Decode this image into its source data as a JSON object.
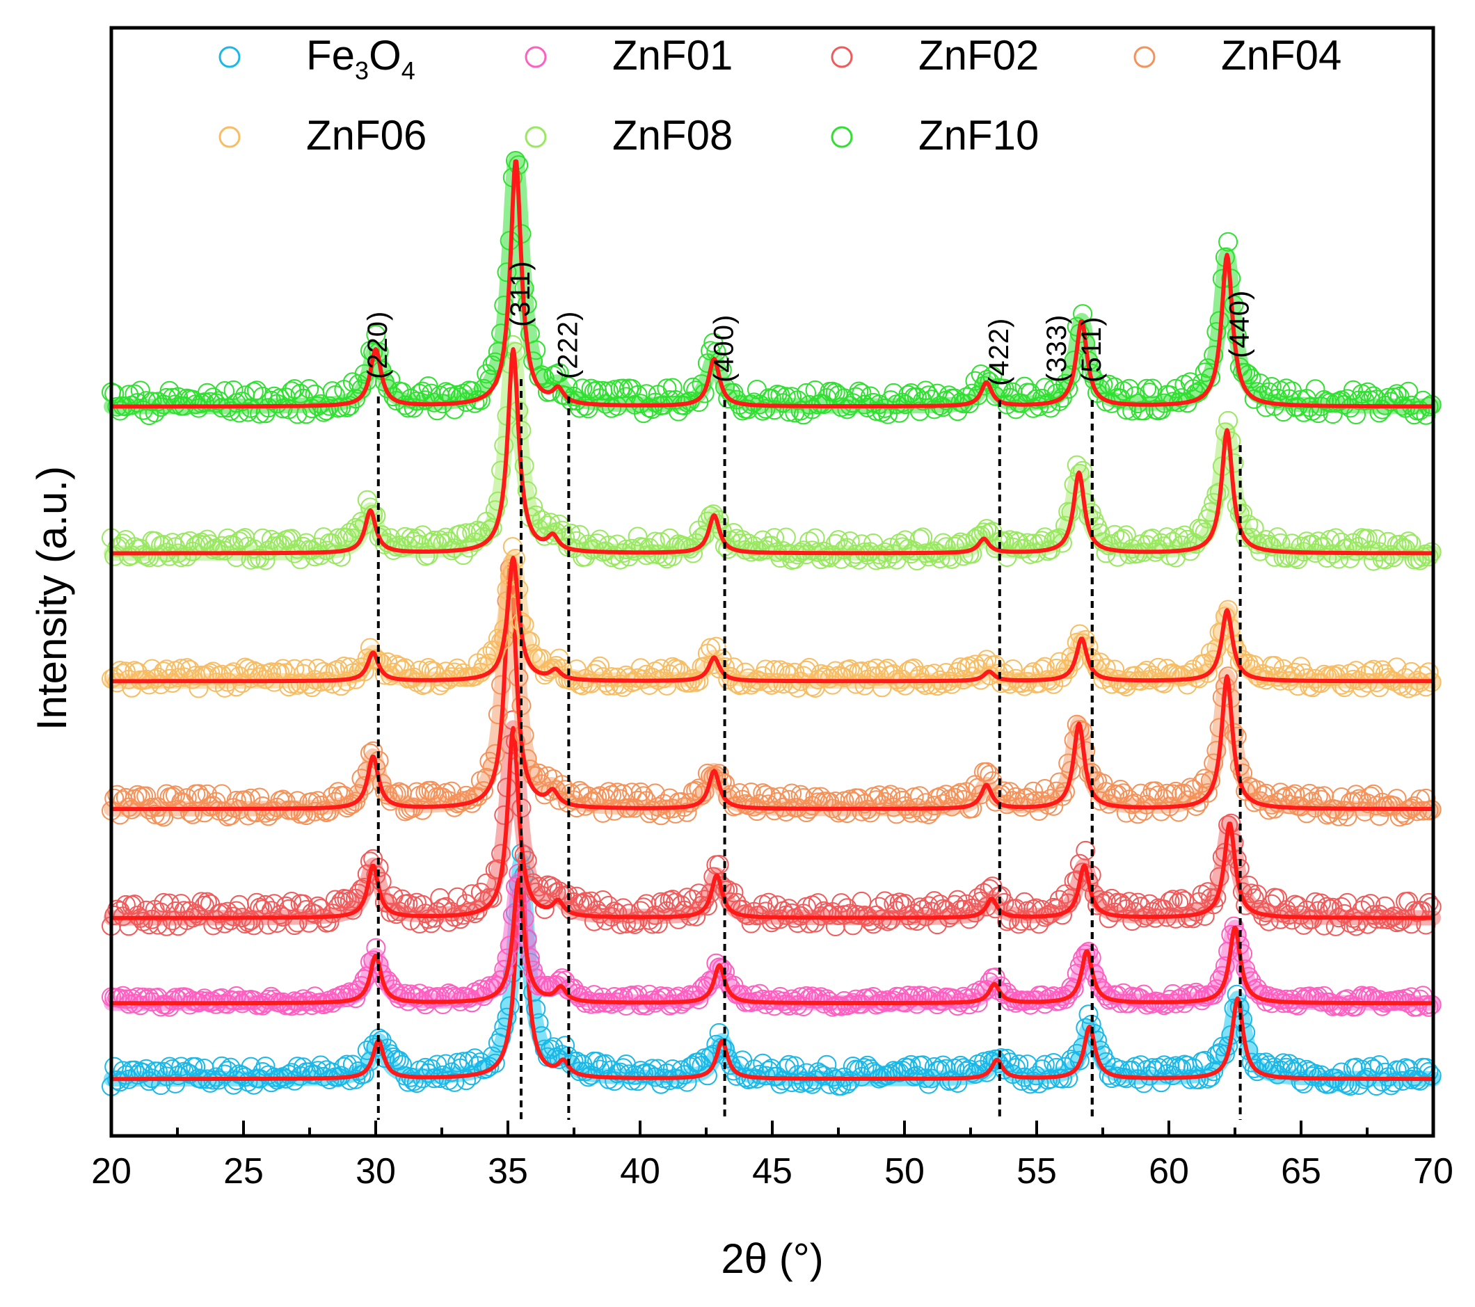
{
  "chart_data": {
    "type": "line",
    "title": "",
    "xlabel": "2θ (°)",
    "ylabel": "Intensity (a.u.)",
    "xlim": [
      20,
      70
    ],
    "xticks": [
      "20",
      "25",
      "30",
      "35",
      "40",
      "45",
      "50",
      "55",
      "60",
      "65",
      "70"
    ],
    "fit_color": "#ff1a1a",
    "series": [
      {
        "name": "Fe3O4",
        "name_main": "Fe",
        "name_sub1": "3",
        "name_mid": "O",
        "name_sub2": "4",
        "color": "#1ab8e8",
        "baseline": 0.0,
        "noise": 0.45,
        "fill": "#1ac8f0",
        "peaks": [
          {
            "x": 30.1,
            "h": 0.8
          },
          {
            "x": 35.5,
            "h": 4.6
          },
          {
            "x": 37.1,
            "h": 0.3
          },
          {
            "x": 43.1,
            "h": 0.8
          },
          {
            "x": 53.5,
            "h": 0.4
          },
          {
            "x": 57.0,
            "h": 1.1
          },
          {
            "x": 62.6,
            "h": 1.7
          }
        ]
      },
      {
        "name": "ZnF01",
        "color": "#ff5fc0",
        "baseline": 1.6,
        "noise": 0.25,
        "fill": "#ff66cc",
        "peaks": [
          {
            "x": 30.0,
            "h": 1.0
          },
          {
            "x": 35.4,
            "h": 2.6
          },
          {
            "x": 37.0,
            "h": 0.3
          },
          {
            "x": 43.0,
            "h": 0.8
          },
          {
            "x": 53.4,
            "h": 0.4
          },
          {
            "x": 56.9,
            "h": 1.1
          },
          {
            "x": 62.5,
            "h": 1.6
          }
        ]
      },
      {
        "name": "ZnF02",
        "color": "#f05a5a",
        "baseline": 3.4,
        "noise": 0.55,
        "fill": "#f06e6e",
        "peaks": [
          {
            "x": 29.9,
            "h": 1.1
          },
          {
            "x": 35.2,
            "h": 4.0
          },
          {
            "x": 36.9,
            "h": 0.3
          },
          {
            "x": 42.9,
            "h": 0.9
          },
          {
            "x": 53.3,
            "h": 0.4
          },
          {
            "x": 56.8,
            "h": 1.1
          },
          {
            "x": 62.3,
            "h": 2.0
          }
        ]
      },
      {
        "name": "ZnF04",
        "color": "#f4925a",
        "baseline": 5.7,
        "noise": 0.5,
        "fill": "#f4a070",
        "peaks": [
          {
            "x": 29.9,
            "h": 1.1
          },
          {
            "x": 35.1,
            "h": 5.2
          },
          {
            "x": 36.7,
            "h": 0.3
          },
          {
            "x": 42.8,
            "h": 0.8
          },
          {
            "x": 53.1,
            "h": 0.5
          },
          {
            "x": 56.6,
            "h": 1.8
          },
          {
            "x": 62.2,
            "h": 2.8
          }
        ]
      },
      {
        "name": "ZnF06",
        "color": "#f8bc62",
        "baseline": 8.4,
        "noise": 0.45,
        "fill": "#f8c470",
        "peaks": [
          {
            "x": 29.9,
            "h": 0.6
          },
          {
            "x": 35.2,
            "h": 2.6
          },
          {
            "x": 36.8,
            "h": 0.2
          },
          {
            "x": 42.8,
            "h": 0.5
          },
          {
            "x": 53.2,
            "h": 0.2
          },
          {
            "x": 56.7,
            "h": 0.9
          },
          {
            "x": 62.2,
            "h": 1.5
          }
        ]
      },
      {
        "name": "ZnF08",
        "color": "#98e860",
        "baseline": 11.1,
        "noise": 0.5,
        "fill": "#a8ec70",
        "peaks": [
          {
            "x": 29.8,
            "h": 0.9
          },
          {
            "x": 35.2,
            "h": 4.3
          },
          {
            "x": 36.7,
            "h": 0.3
          },
          {
            "x": 42.8,
            "h": 0.8
          },
          {
            "x": 53.0,
            "h": 0.3
          },
          {
            "x": 56.6,
            "h": 1.7
          },
          {
            "x": 62.2,
            "h": 2.6
          }
        ]
      },
      {
        "name": "ZnF10",
        "color": "#30e030",
        "baseline": 14.2,
        "noise": 0.55,
        "fill": "#38e038",
        "peaks": [
          {
            "x": 30.0,
            "h": 1.2
          },
          {
            "x": 35.3,
            "h": 5.2
          },
          {
            "x": 36.9,
            "h": 0.3
          },
          {
            "x": 42.8,
            "h": 1.0
          },
          {
            "x": 53.1,
            "h": 0.5
          },
          {
            "x": 56.7,
            "h": 1.8
          },
          {
            "x": 62.2,
            "h": 3.2
          }
        ]
      }
    ],
    "reference_lines": [
      {
        "x": 30.1,
        "label": "(220)"
      },
      {
        "x": 35.5,
        "label": "(311)"
      },
      {
        "x": 37.3,
        "label": "(222)"
      },
      {
        "x": 43.2,
        "label": "(400)"
      },
      {
        "x": 53.6,
        "label": "(422)"
      },
      {
        "x": 57.1,
        "label": "(333)"
      },
      {
        "x": 57.1,
        "label": "(511)"
      },
      {
        "x": 62.7,
        "label": "(440)"
      }
    ],
    "legend": {
      "position": "top",
      "columns": 4
    }
  }
}
